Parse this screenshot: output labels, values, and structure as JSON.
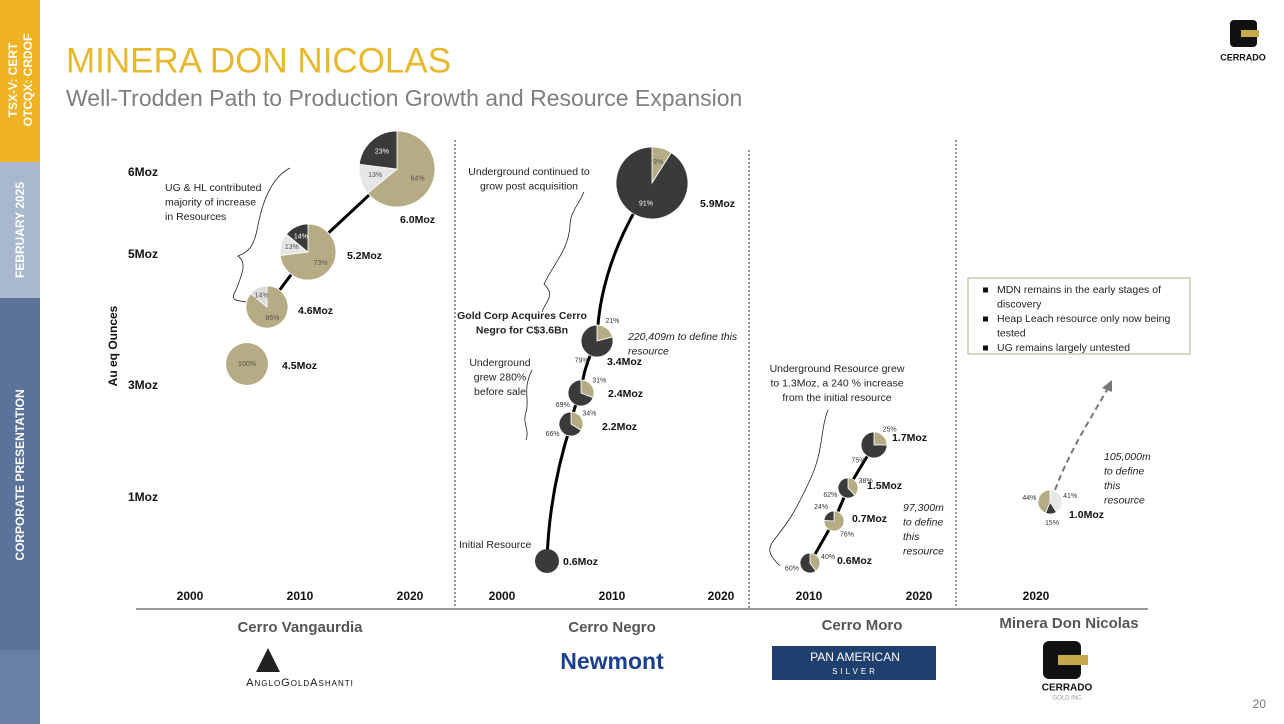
{
  "sidebar": {
    "ticker": [
      "TSX-V: CERT",
      "OTCQX: CRDOF"
    ],
    "date": "FEBRUARY 2025",
    "section": "CORPORATE PRESENTATION"
  },
  "header": {
    "title": "MINERA DON NICOLAS",
    "subtitle": "Well-Trodden Path to Production Growth and Resource Expansion",
    "logo_text": "CERRADO"
  },
  "y_axis": {
    "label": "Au eq Ounces",
    "ticks": [
      "6Moz",
      "5Moz",
      "3Moz",
      "1Moz"
    ]
  },
  "panels": [
    {
      "company": "Cerro Vangaurdia",
      "logo": [
        "AngloGoldAshanti"
      ],
      "years": [
        "2000",
        "2010",
        "2020"
      ],
      "bubbles": [
        {
          "label": "4.5Moz",
          "values": [
            100
          ],
          "value_labels": [
            "100%"
          ],
          "colors": [
            "#b5ac86"
          ]
        },
        {
          "label": "4.6Moz",
          "values": [
            86,
            14
          ],
          "value_labels": [
            "86%",
            "14%"
          ],
          "colors": [
            "#b5ac86",
            "#dcdcdc"
          ]
        },
        {
          "label": "5.2Moz",
          "values": [
            73,
            13,
            14
          ],
          "value_labels": [
            "73%",
            "13%",
            "14%"
          ],
          "colors": [
            "#b5ac86",
            "#e6e6e6",
            "#3a3a3a"
          ]
        },
        {
          "label": "6.0Moz",
          "values": [
            64,
            13,
            23
          ],
          "value_labels": [
            "64%",
            "13%",
            "23%"
          ],
          "colors": [
            "#b5ac86",
            "#e6e6e6",
            "#3a3a3a"
          ]
        }
      ],
      "notes": [
        {
          "lines": [
            "UG & HL contributed",
            "majority of increase",
            "in Resources"
          ]
        }
      ]
    },
    {
      "company": "Cerro Negro",
      "logo": [
        "Newmont"
      ],
      "years": [
        "2000",
        "2010",
        "2020"
      ],
      "bubbles": [
        {
          "label": "0.6Moz",
          "values": [
            100
          ],
          "colors": [
            "#3a3a3a"
          ]
        },
        {
          "label": "2.2Moz",
          "values": [
            34,
            66
          ],
          "value_labels": [
            "34%",
            "66%"
          ],
          "colors": [
            "#b5ac86",
            "#3a3a3a"
          ]
        },
        {
          "label": "2.4Moz",
          "values": [
            31,
            69
          ],
          "value_labels": [
            "31%",
            "69%"
          ],
          "colors": [
            "#b5ac86",
            "#3a3a3a"
          ]
        },
        {
          "label": "3.4Moz",
          "values": [
            21,
            79
          ],
          "value_labels": [
            "21%",
            "79%"
          ],
          "colors": [
            "#b5ac86",
            "#3a3a3a"
          ]
        },
        {
          "label": "5.9Moz",
          "values": [
            9,
            91
          ],
          "value_labels": [
            "9%",
            "91%"
          ],
          "colors": [
            "#b5ac86",
            "#3a3a3a"
          ]
        }
      ],
      "notes": [
        {
          "lines": [
            "Underground continued to",
            "grow post acquisition"
          ]
        },
        {
          "lines": [
            "Gold Corp Acquires Cerro",
            "Negro for C$3.6Bn"
          ]
        },
        {
          "lines": [
            "220,409m to define this",
            "resource"
          ]
        },
        {
          "lines": [
            "Underground",
            "grew 280%",
            "before sale"
          ]
        },
        {
          "lines": [
            "Initial Resource"
          ]
        }
      ]
    },
    {
      "company": "Cerro Moro",
      "logo": [
        "PAN AMERICAN",
        "SILVER"
      ],
      "years": [
        "2010",
        "2020"
      ],
      "bubbles": [
        {
          "label": "0.6Moz",
          "values": [
            40,
            60
          ],
          "value_labels": [
            "40%",
            "60%"
          ],
          "colors": [
            "#b5ac86",
            "#3a3a3a"
          ]
        },
        {
          "label": "0.7Moz",
          "values": [
            76,
            24
          ],
          "value_labels": [
            "76%",
            "24%"
          ],
          "colors": [
            "#b5ac86",
            "#3a3a3a"
          ]
        },
        {
          "label": "1.5Moz",
          "values": [
            38,
            62
          ],
          "value_labels": [
            "38%",
            "62%"
          ],
          "colors": [
            "#b5ac86",
            "#3a3a3a"
          ]
        },
        {
          "label": "1.7Moz",
          "values": [
            25,
            75
          ],
          "value_labels": [
            "25%",
            "75%"
          ],
          "colors": [
            "#b5ac86",
            "#3a3a3a"
          ]
        }
      ],
      "notes": [
        {
          "lines": [
            "Underground Resource grew",
            "to 1.3Moz, a 240 % increase",
            "from the initial resource"
          ]
        },
        {
          "lines": [
            "97,300m",
            "to define",
            "this",
            "resource"
          ]
        }
      ]
    },
    {
      "company": "Minera Don Nicolas",
      "logo": [
        "CERRADO",
        "GOLD INC"
      ],
      "years": [
        "2020"
      ],
      "bubbles": [
        {
          "label": "1.0Moz",
          "values": [
            41,
            15,
            44
          ],
          "value_labels": [
            "41%",
            "15%",
            "44%"
          ],
          "colors": [
            "#e6e6e6",
            "#3a3a3a",
            "#b5ac86"
          ]
        }
      ],
      "notes": [
        {
          "lines": [
            "105,000m",
            "to define",
            "this",
            "resource"
          ]
        }
      ]
    }
  ],
  "mdn_box": {
    "bullets": [
      [
        "MDN remains in the early stages of",
        "discovery"
      ],
      [
        "Heap Leach resource only now being",
        "tested"
      ],
      [
        "UG remains largely untested"
      ]
    ]
  },
  "page_number": "20"
}
